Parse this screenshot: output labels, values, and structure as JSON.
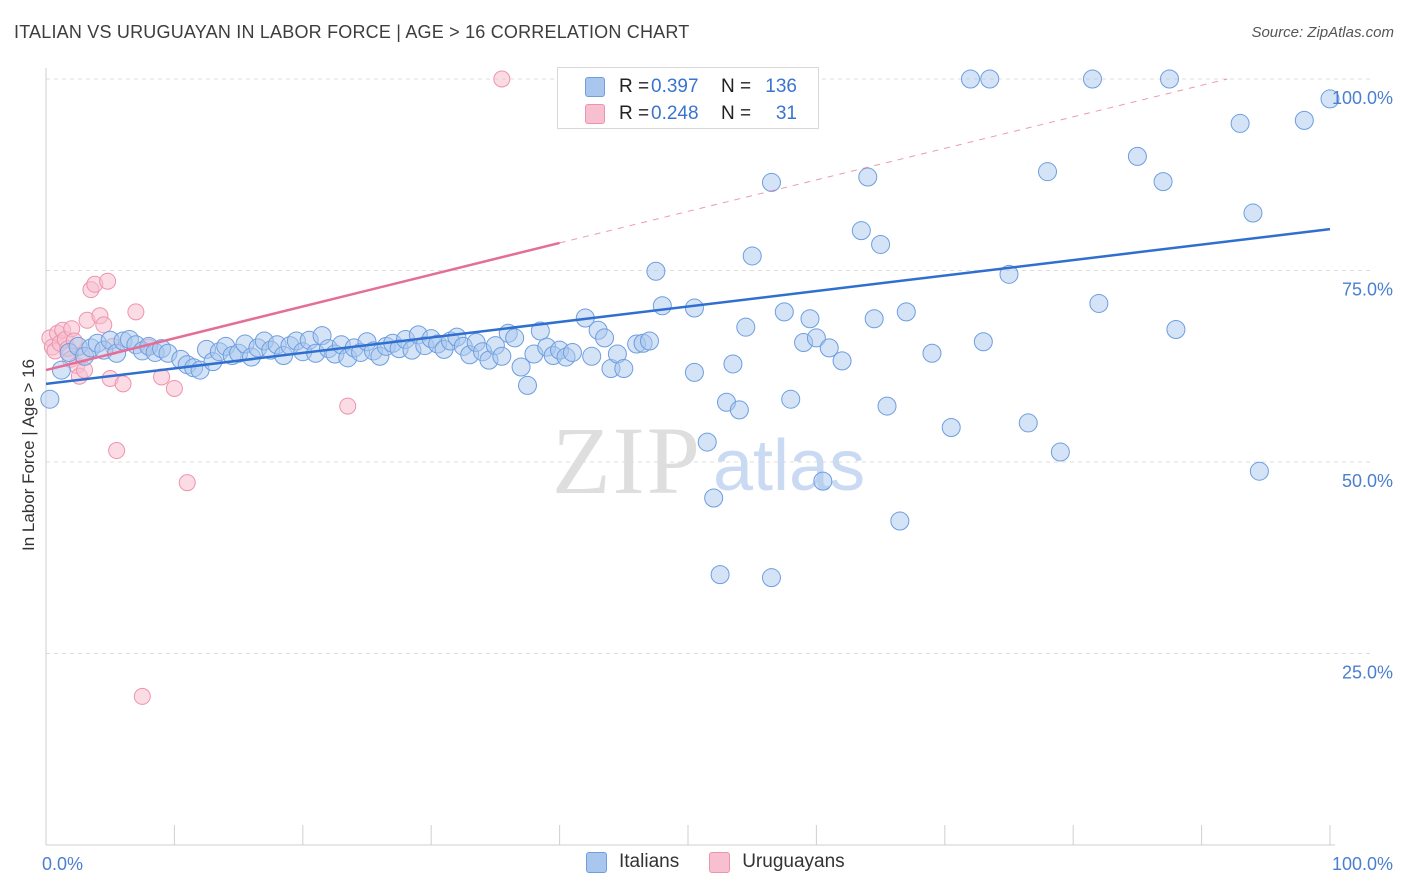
{
  "title": "ITALIAN VS URUGUAYAN IN LABOR FORCE | AGE > 16 CORRELATION CHART",
  "source": "Source: ZipAtlas.com",
  "watermark": {
    "zip": "ZIP",
    "atlas": "atlas"
  },
  "legend": {
    "italians": {
      "r_label": "R =",
      "r_value": "0.397",
      "n_label": "N =",
      "n_value": "136"
    },
    "uruguayans": {
      "r_label": "R =",
      "r_value": "0.248",
      "n_label": "N =",
      "n_value": "31"
    }
  },
  "bottom_legend": {
    "italians": "Italians",
    "uruguayans": "Uruguayans"
  },
  "colors": {
    "italians_fill": "#a9c7ee",
    "italians_stroke": "#6d9ee0",
    "italians_line": "#2f6fd0",
    "uruguayans_fill": "#f7bfd0",
    "uruguayans_stroke": "#ee93ae",
    "uruguayans_line": "#e46e98",
    "axis_label": "#4a7fd0",
    "grid": "#dcdcdc"
  },
  "chart_data": {
    "type": "scatter",
    "title": "ITALIAN VS URUGUAYAN IN LABOR FORCE | AGE > 16 CORRELATION CHART",
    "xlabel": "",
    "ylabel": "In Labor Force | Age > 16",
    "xlim": [
      0,
      100
    ],
    "ylim": [
      0,
      100
    ],
    "x_tick_labels": [
      "0.0%",
      "100.0%"
    ],
    "y_tick_labels": [
      {
        "value": 100,
        "label": "100.0%"
      },
      {
        "value": 75,
        "label": "75.0%"
      },
      {
        "value": 50,
        "label": "50.0%"
      },
      {
        "value": 25,
        "label": "25.0%"
      }
    ],
    "grid": true,
    "legend_position": "top-center",
    "series": [
      {
        "name": "Italians",
        "trend": {
          "x": [
            0,
            100
          ],
          "y": [
            60.2,
            80.4
          ]
        },
        "points": [
          [
            0.3,
            58.2
          ],
          [
            1.2,
            62.0
          ],
          [
            1.8,
            64.3
          ],
          [
            2.5,
            65.1
          ],
          [
            3.0,
            63.8
          ],
          [
            3.5,
            64.9
          ],
          [
            4.0,
            65.5
          ],
          [
            4.5,
            64.6
          ],
          [
            5.0,
            65.9
          ],
          [
            5.5,
            64.2
          ],
          [
            6.0,
            65.8
          ],
          [
            6.5,
            66.0
          ],
          [
            7.0,
            65.3
          ],
          [
            7.5,
            64.5
          ],
          [
            8.0,
            65.1
          ],
          [
            8.5,
            64.3
          ],
          [
            9.0,
            64.8
          ],
          [
            9.5,
            64.2
          ],
          [
            10.5,
            63.4
          ],
          [
            11.0,
            62.7
          ],
          [
            11.5,
            62.3
          ],
          [
            12.0,
            62.0
          ],
          [
            12.5,
            64.7
          ],
          [
            13.0,
            63.1
          ],
          [
            13.5,
            64.4
          ],
          [
            14.0,
            65.1
          ],
          [
            14.5,
            63.9
          ],
          [
            15.0,
            64.2
          ],
          [
            15.5,
            65.4
          ],
          [
            16.0,
            63.7
          ],
          [
            16.5,
            64.9
          ],
          [
            17.0,
            65.8
          ],
          [
            17.5,
            64.6
          ],
          [
            18.0,
            65.3
          ],
          [
            18.5,
            63.9
          ],
          [
            19.0,
            65.2
          ],
          [
            19.5,
            65.8
          ],
          [
            20.0,
            64.4
          ],
          [
            20.5,
            65.9
          ],
          [
            21.0,
            64.2
          ],
          [
            21.5,
            66.5
          ],
          [
            22.0,
            64.8
          ],
          [
            22.5,
            64.1
          ],
          [
            23.0,
            65.3
          ],
          [
            23.5,
            63.6
          ],
          [
            24.0,
            64.9
          ],
          [
            24.5,
            64.3
          ],
          [
            25.0,
            65.7
          ],
          [
            25.5,
            64.5
          ],
          [
            26.0,
            63.8
          ],
          [
            26.5,
            65.1
          ],
          [
            27.0,
            65.5
          ],
          [
            27.5,
            64.8
          ],
          [
            28.0,
            66.0
          ],
          [
            28.5,
            64.6
          ],
          [
            29.0,
            66.6
          ],
          [
            29.5,
            65.2
          ],
          [
            30.0,
            66.1
          ],
          [
            30.5,
            65.4
          ],
          [
            31.0,
            64.7
          ],
          [
            31.5,
            65.8
          ],
          [
            32.0,
            66.3
          ],
          [
            32.5,
            65.1
          ],
          [
            33.0,
            64.0
          ],
          [
            33.5,
            65.6
          ],
          [
            34.0,
            64.4
          ],
          [
            34.5,
            63.3
          ],
          [
            35.0,
            65.2
          ],
          [
            35.5,
            63.8
          ],
          [
            36.0,
            66.8
          ],
          [
            36.5,
            66.2
          ],
          [
            37.0,
            62.4
          ],
          [
            37.5,
            60.0
          ],
          [
            38.0,
            64.1
          ],
          [
            38.5,
            67.1
          ],
          [
            39.0,
            65.0
          ],
          [
            39.5,
            63.9
          ],
          [
            40.0,
            64.6
          ],
          [
            40.5,
            63.7
          ],
          [
            41.0,
            64.3
          ],
          [
            42.0,
            68.8
          ],
          [
            42.5,
            63.8
          ],
          [
            43.0,
            67.2
          ],
          [
            43.5,
            66.2
          ],
          [
            44.0,
            62.2
          ],
          [
            44.5,
            64.1
          ],
          [
            45.0,
            62.2
          ],
          [
            46.0,
            65.4
          ],
          [
            46.5,
            65.5
          ],
          [
            47.0,
            65.8
          ],
          [
            47.5,
            74.9
          ],
          [
            48.0,
            70.4
          ],
          [
            50.5,
            70.1
          ],
          [
            50.5,
            61.7
          ],
          [
            51.5,
            52.6
          ],
          [
            52.0,
            45.3
          ],
          [
            52.5,
            35.3
          ],
          [
            53.0,
            57.8
          ],
          [
            53.5,
            62.8
          ],
          [
            54.0,
            56.8
          ],
          [
            54.5,
            67.6
          ],
          [
            55.0,
            76.9
          ],
          [
            56.5,
            34.9
          ],
          [
            56.5,
            86.5
          ],
          [
            57.5,
            69.6
          ],
          [
            58.0,
            58.2
          ],
          [
            59.0,
            65.6
          ],
          [
            59.5,
            68.7
          ],
          [
            60.0,
            66.2
          ],
          [
            60.5,
            47.5
          ],
          [
            61.0,
            64.9
          ],
          [
            62.0,
            63.2
          ],
          [
            63.5,
            80.2
          ],
          [
            64.0,
            87.2
          ],
          [
            64.5,
            68.7
          ],
          [
            65.0,
            78.4
          ],
          [
            65.5,
            57.3
          ],
          [
            66.5,
            42.3
          ],
          [
            67.0,
            69.6
          ],
          [
            69.0,
            64.2
          ],
          [
            70.5,
            54.5
          ],
          [
            72.0,
            100
          ],
          [
            73.0,
            65.7
          ],
          [
            73.5,
            100
          ],
          [
            75.0,
            74.5
          ],
          [
            76.5,
            55.1
          ],
          [
            78.0,
            87.9
          ],
          [
            79.0,
            51.3
          ],
          [
            81.5,
            100
          ],
          [
            82.0,
            70.7
          ],
          [
            85.0,
            89.9
          ],
          [
            87.0,
            86.6
          ],
          [
            87.5,
            100
          ],
          [
            88.0,
            67.3
          ],
          [
            93.0,
            94.2
          ],
          [
            94.0,
            82.5
          ],
          [
            94.5,
            48.8
          ],
          [
            98.0,
            94.6
          ],
          [
            100,
            97.4
          ]
        ]
      },
      {
        "name": "Uruguayans",
        "trend": {
          "x": [
            0,
            40
          ],
          "y": [
            62.0,
            78.6
          ],
          "extension": {
            "x": [
              40,
              92
            ],
            "y": [
              78.6,
              100
            ]
          }
        },
        "points": [
          [
            0.3,
            66.2
          ],
          [
            0.5,
            65.0
          ],
          [
            0.7,
            64.5
          ],
          [
            0.9,
            66.8
          ],
          [
            1.1,
            65.5
          ],
          [
            1.3,
            67.2
          ],
          [
            1.5,
            66.0
          ],
          [
            1.7,
            64.8
          ],
          [
            1.9,
            63.4
          ],
          [
            2.0,
            67.4
          ],
          [
            2.2,
            65.8
          ],
          [
            2.4,
            62.6
          ],
          [
            2.6,
            61.2
          ],
          [
            2.8,
            63.9
          ],
          [
            3.0,
            62.0
          ],
          [
            3.2,
            68.5
          ],
          [
            3.5,
            72.5
          ],
          [
            3.8,
            73.2
          ],
          [
            4.2,
            69.1
          ],
          [
            4.5,
            67.9
          ],
          [
            4.8,
            73.6
          ],
          [
            5.0,
            60.9
          ],
          [
            5.2,
            65.1
          ],
          [
            5.5,
            51.5
          ],
          [
            6.0,
            60.2
          ],
          [
            7.0,
            69.6
          ],
          [
            7.5,
            19.4
          ],
          [
            8.0,
            65.0
          ],
          [
            9.0,
            61.1
          ],
          [
            10.0,
            59.6
          ],
          [
            11.0,
            47.3
          ],
          [
            23.5,
            57.3
          ],
          [
            35.5,
            100
          ]
        ]
      }
    ]
  }
}
